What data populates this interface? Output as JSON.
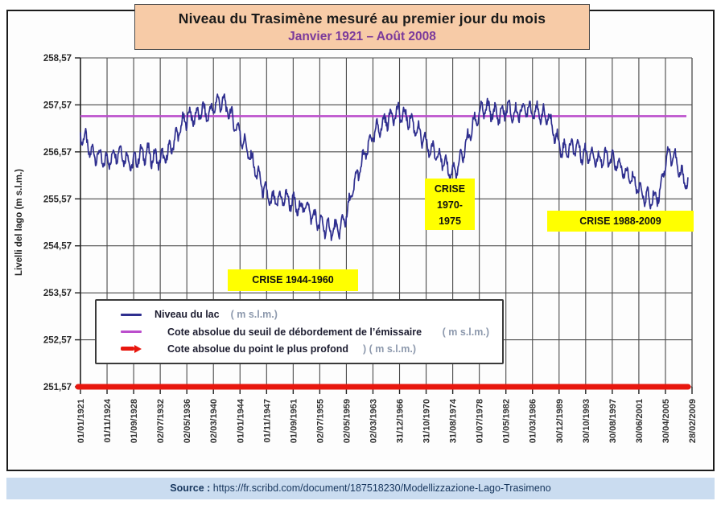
{
  "page": {
    "title": "Niveau du Trasimène mesuré au premier jour du mois",
    "subtitle": "Janvier 1921 – Août 2008",
    "source_label": "Source :",
    "source_url": "https://fr.scribd.com/document/187518230/Modellizzazione-Lago-Trasimeno"
  },
  "colors": {
    "title_box_bg": "#f7cba7",
    "subtitle_text": "#7b3a9b",
    "series_line": "#2f2f8f",
    "overflow_line": "#bb4ecc",
    "deepest_line": "#e8170e",
    "grid_line": "#4a4a4a",
    "axis_line": "#222222",
    "tick_text": "#2b2b2b",
    "crisis_bg": "#ffff00",
    "source_bar_bg": "#cadcf0",
    "source_text": "#17365d",
    "legend_suffix_text": "#8d99ad"
  },
  "legend": {
    "items": [
      {
        "label": "Niveau du lac",
        "suffix": "( m  s.l.m.)"
      },
      {
        "label": "Cote absolue du seuil de débordement de l’émissaire",
        "suffix": "( m  s.l.m.)"
      },
      {
        "label": "Cote absolue du point le plus profond",
        "suffix": ") ( m  s.l.m.)"
      }
    ]
  },
  "annotations": [
    {
      "text": "CRISE 1944-1960"
    },
    {
      "lines": [
        "CRISE",
        "1970-",
        "1975"
      ]
    },
    {
      "text": "CRISE 1988-2009"
    }
  ],
  "chart_data": {
    "type": "line",
    "title": "Niveau du Trasimène mesuré au premier jour du mois (Janvier 1921 – Août 2008)",
    "xlabel": "",
    "ylabel": "Livelli del lago (m s.l.m.)",
    "ylim": [
      251.57,
      258.57
    ],
    "y_tick_values": [
      258.57,
      257.57,
      256.57,
      255.57,
      254.57,
      253.57,
      252.57,
      251.57
    ],
    "y_tick_labels": [
      "258,57",
      "257,57",
      "256,57",
      "255,57",
      "254,57",
      "253,57",
      "252,57",
      "251,57"
    ],
    "x_tick_labels": [
      "01/01/1921",
      "01/11/1924",
      "01/09/1928",
      "02/07/1932",
      "02/05/1936",
      "02/03/1940",
      "01/01/1944",
      "01/11/1947",
      "01/09/1951",
      "02/07/1955",
      "02/05/1959",
      "02/03/1963",
      "31/12/1966",
      "31/10/1970",
      "31/08/1974",
      "01/07/1978",
      "01/05/1982",
      "01/03/1986",
      "30/12/1989",
      "30/10/1993",
      "30/08/1997",
      "30/06/2001",
      "30/04/2005",
      "28/02/2009"
    ],
    "x_start_year": 1921.0,
    "x_end_year": 2009.17,
    "grid": true,
    "legend_position": "lower-left-inside",
    "series": [
      {
        "name": "Niveau du lac (m s.l.m.)",
        "kind": "monthly-noisy-line",
        "start_year": 1921,
        "end_year_fraction": 2008.583,
        "seasonal_amplitude": 0.16,
        "noise_amplitude": 0.1,
        "annual_mean_levels": [
          256.9,
          256.55,
          256.5,
          256.35,
          256.45,
          256.6,
          256.45,
          256.3,
          256.5,
          256.55,
          256.45,
          256.4,
          256.5,
          256.8,
          257.1,
          257.35,
          257.3,
          257.45,
          257.35,
          257.6,
          257.65,
          257.4,
          257.1,
          256.8,
          256.45,
          256.1,
          255.75,
          255.5,
          255.55,
          255.6,
          255.5,
          255.35,
          255.45,
          255.2,
          255.05,
          254.95,
          254.9,
          254.95,
          255.3,
          255.9,
          256.3,
          256.7,
          257.0,
          257.15,
          257.3,
          257.4,
          257.35,
          257.25,
          257.05,
          256.8,
          256.6,
          256.55,
          256.3,
          256.1,
          256.25,
          256.7,
          257.1,
          257.4,
          257.5,
          257.4,
          257.35,
          257.5,
          257.35,
          257.45,
          257.5,
          257.45,
          257.35,
          257.3,
          256.9,
          256.6,
          256.65,
          256.7,
          256.5,
          256.55,
          256.4,
          256.45,
          256.4,
          256.3,
          256.1,
          256.0,
          255.8,
          255.6,
          255.55,
          255.7,
          256.5,
          256.5,
          256.1,
          255.9
        ]
      },
      {
        "name": "Cote absolue du seuil de débordement de l’émissaire (m s.l.m.)",
        "kind": "constant",
        "constant_value": 257.33
      },
      {
        "name": "Cote absolue du point le plus profond (m s.l.m.)",
        "kind": "constant",
        "constant_value": 251.57
      }
    ]
  }
}
